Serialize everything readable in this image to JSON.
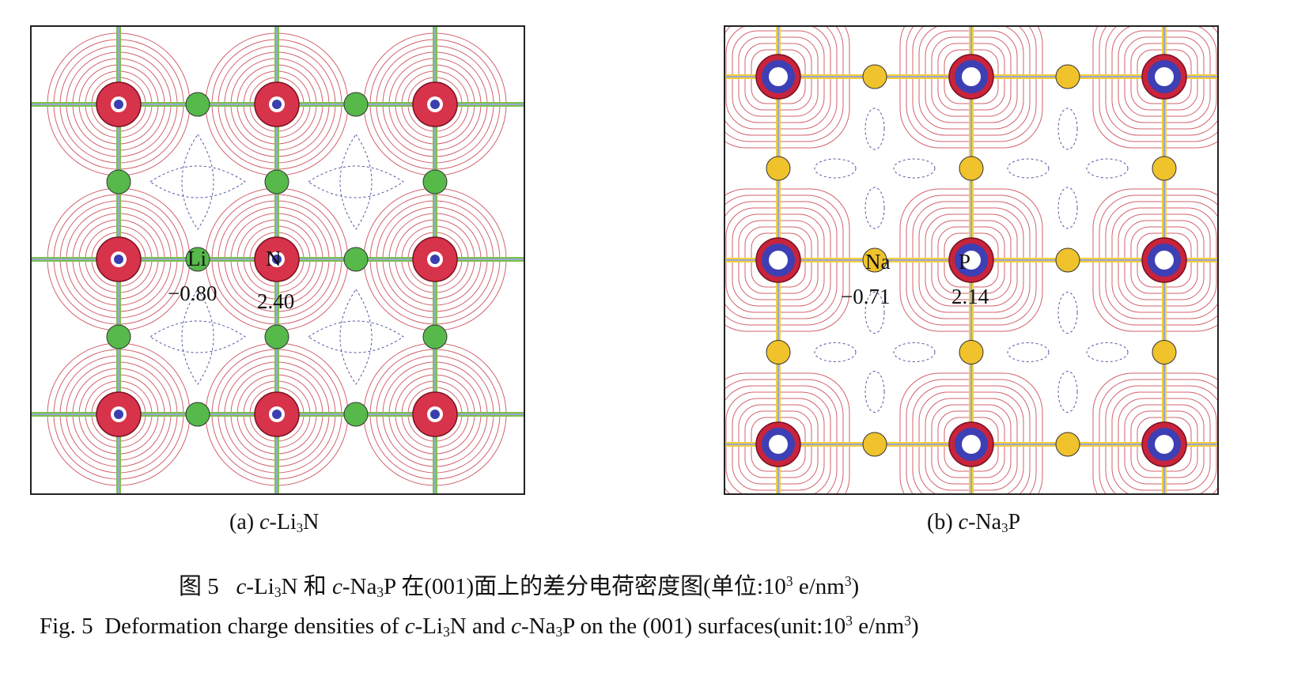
{
  "panel_a": {
    "center_atom": {
      "symbol": "N",
      "value": "2.40"
    },
    "bridge_atom": {
      "symbol": "Li",
      "value": "−0.80"
    },
    "caption": {
      "prefix": "(a) ",
      "italic": "c",
      "mid": "-Li",
      "sub": "3",
      "suffix": "N"
    },
    "colors": {
      "center": "#d7334a",
      "center_core": "#3a3fb0",
      "bridge": "#56b94a",
      "bond": "#7cc24b",
      "bond2": "#9aa6d6",
      "positive_contour": "#c2303a",
      "negative_contour": "#27308a"
    }
  },
  "panel_b": {
    "center_atom": {
      "symbol": "P",
      "value": "2.14"
    },
    "bridge_atom": {
      "symbol": "Na",
      "value": "−0.71"
    },
    "caption": {
      "prefix": "(b) ",
      "italic": "c",
      "mid": "-Na",
      "sub": "3",
      "suffix": "P"
    },
    "colors": {
      "center": "#c8243c",
      "center_core": "#3d3fb5",
      "bridge": "#f0c22c",
      "bond": "#f2cf3a",
      "bond2": "#9aa6d6",
      "positive_contour": "#c2303a",
      "negative_contour": "#27308a"
    }
  },
  "figure_caption_cn": {
    "label": "图 5",
    "i1": "c",
    "t1": "-Li",
    "s1": "3",
    "t2": "N 和 ",
    "i2": "c",
    "t3": "-Na",
    "s2": "3",
    "t4": "P 在(001)面上的差分电荷密度图(单位:10",
    "sup1": "3",
    "t5": " e/nm",
    "sup2": "3",
    "t6": ")"
  },
  "figure_caption_en": {
    "label": "Fig. 5",
    "t1": "Deformation charge densities of ",
    "i1": "c",
    "t2": "-Li",
    "s1": "3",
    "t3": "N and ",
    "i2": "c",
    "t4": "-Na",
    "s2": "3",
    "t5": "P on the (001) surfaces(unit:10",
    "sup1": "3",
    "t6": " e/nm",
    "sup2": "3",
    "t7": ")"
  }
}
